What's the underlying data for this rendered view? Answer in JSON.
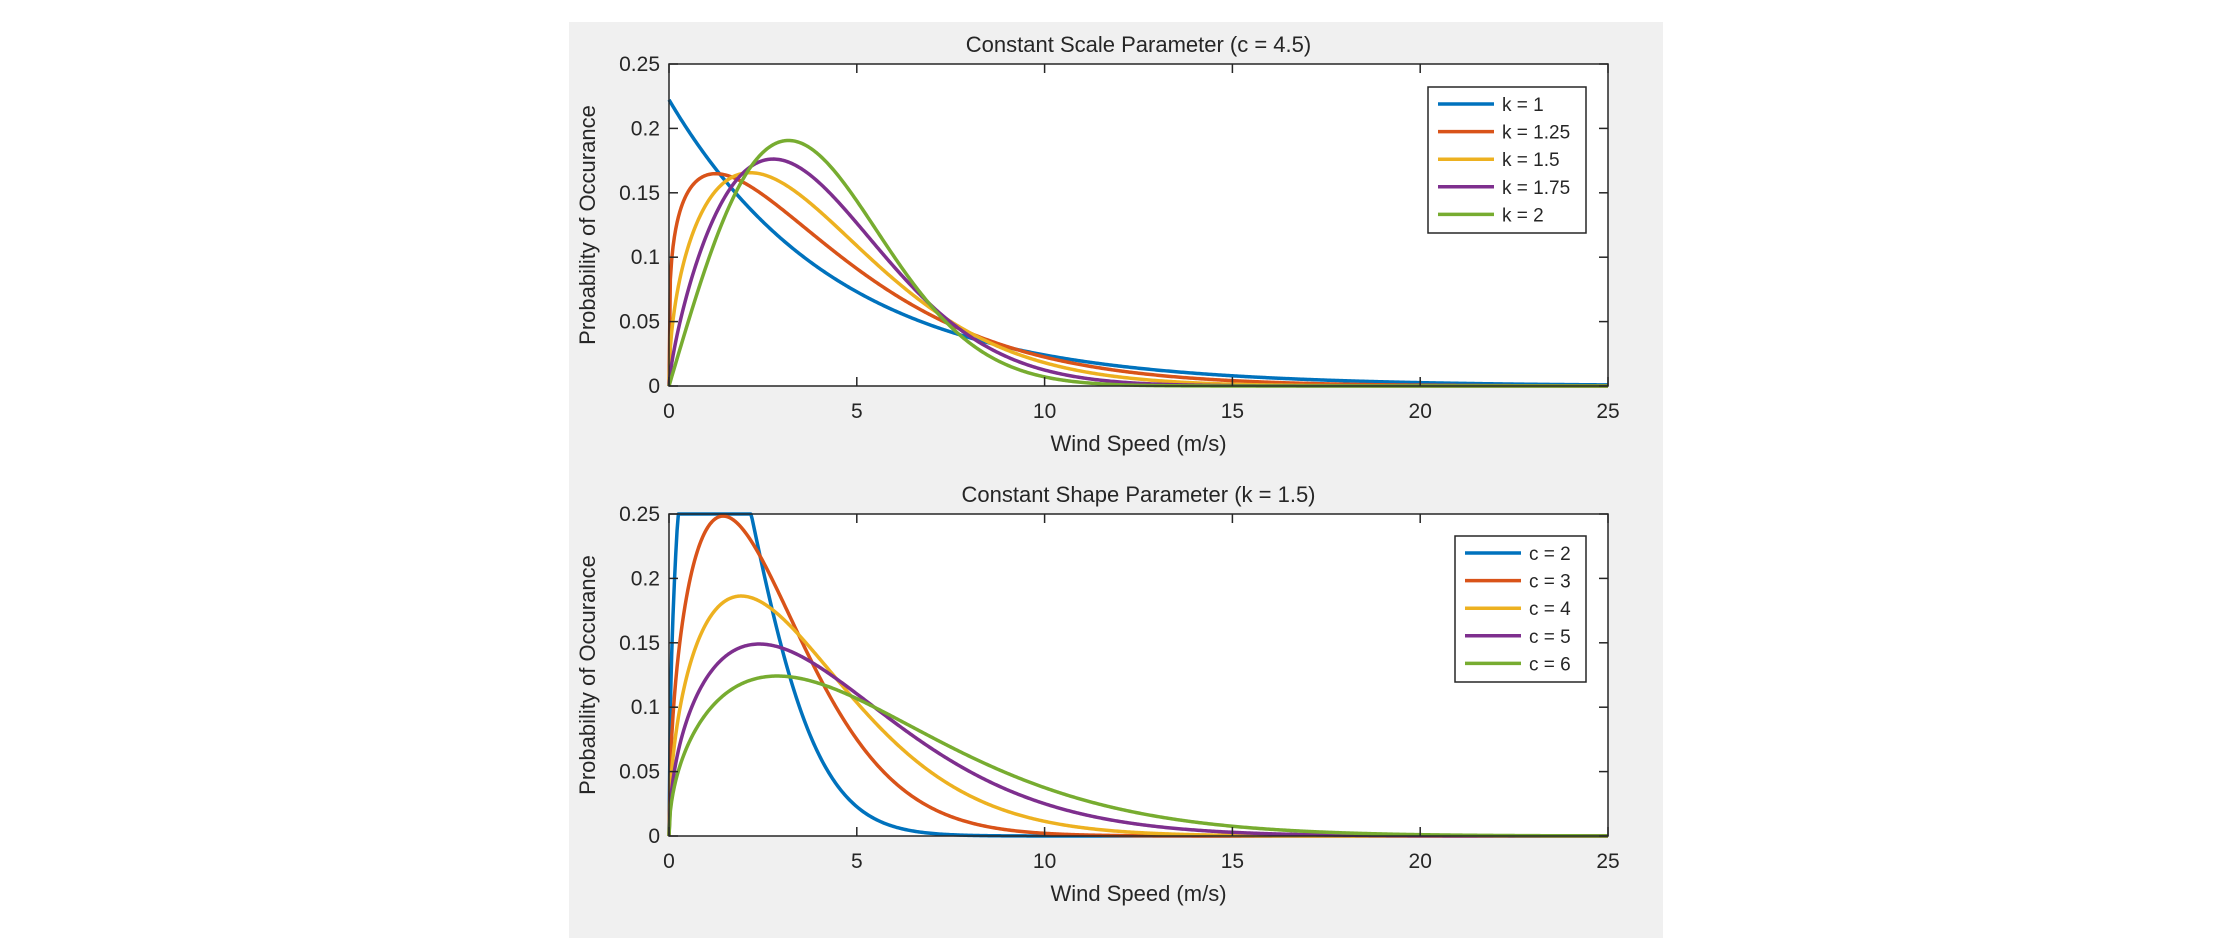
{
  "figure": {
    "background": "#f0f0f0",
    "axes_color": "#262626"
  },
  "chart_data": [
    {
      "type": "line",
      "title": "Constant Scale Parameter (c = 4.5)",
      "xlabel": "Wind Speed (m/s)",
      "ylabel": "Probability of Occurance",
      "xlim": [
        0,
        25
      ],
      "ylim": [
        0,
        0.25
      ],
      "xticks": [
        0,
        5,
        10,
        15,
        20,
        25
      ],
      "yticks": [
        0,
        0.05,
        0.1,
        0.15,
        0.2,
        0.25
      ],
      "grid": false,
      "legend_position": "top-right",
      "distribution": "weibull",
      "series": [
        {
          "name": "k = 1",
          "k": 1,
          "c": 4.5,
          "color": "#0072bd"
        },
        {
          "name": "k = 1.25",
          "k": 1.25,
          "c": 4.5,
          "color": "#d95319"
        },
        {
          "name": "k = 1.5",
          "k": 1.5,
          "c": 4.5,
          "color": "#edb120"
        },
        {
          "name": "k = 1.75",
          "k": 1.75,
          "c": 4.5,
          "color": "#7e2f8e"
        },
        {
          "name": "k = 2",
          "k": 2,
          "c": 4.5,
          "color": "#77ac30"
        }
      ]
    },
    {
      "type": "line",
      "title": "Constant Shape Parameter (k = 1.5)",
      "xlabel": "Wind Speed (m/s)",
      "ylabel": "Probability of Occurance",
      "xlim": [
        0,
        25
      ],
      "ylim": [
        0,
        0.25
      ],
      "xticks": [
        0,
        5,
        10,
        15,
        20,
        25
      ],
      "yticks": [
        0,
        0.05,
        0.1,
        0.15,
        0.2,
        0.25
      ],
      "grid": false,
      "legend_position": "top-right",
      "distribution": "weibull",
      "series": [
        {
          "name": "c = 2",
          "k": 1.5,
          "c": 2,
          "color": "#0072bd"
        },
        {
          "name": "c = 3",
          "k": 1.5,
          "c": 3,
          "color": "#d95319"
        },
        {
          "name": "c = 4",
          "k": 1.5,
          "c": 4,
          "color": "#edb120"
        },
        {
          "name": "c = 5",
          "k": 1.5,
          "c": 5,
          "color": "#7e2f8e"
        },
        {
          "name": "c = 6",
          "k": 1.5,
          "c": 6,
          "color": "#77ac30"
        }
      ]
    }
  ]
}
